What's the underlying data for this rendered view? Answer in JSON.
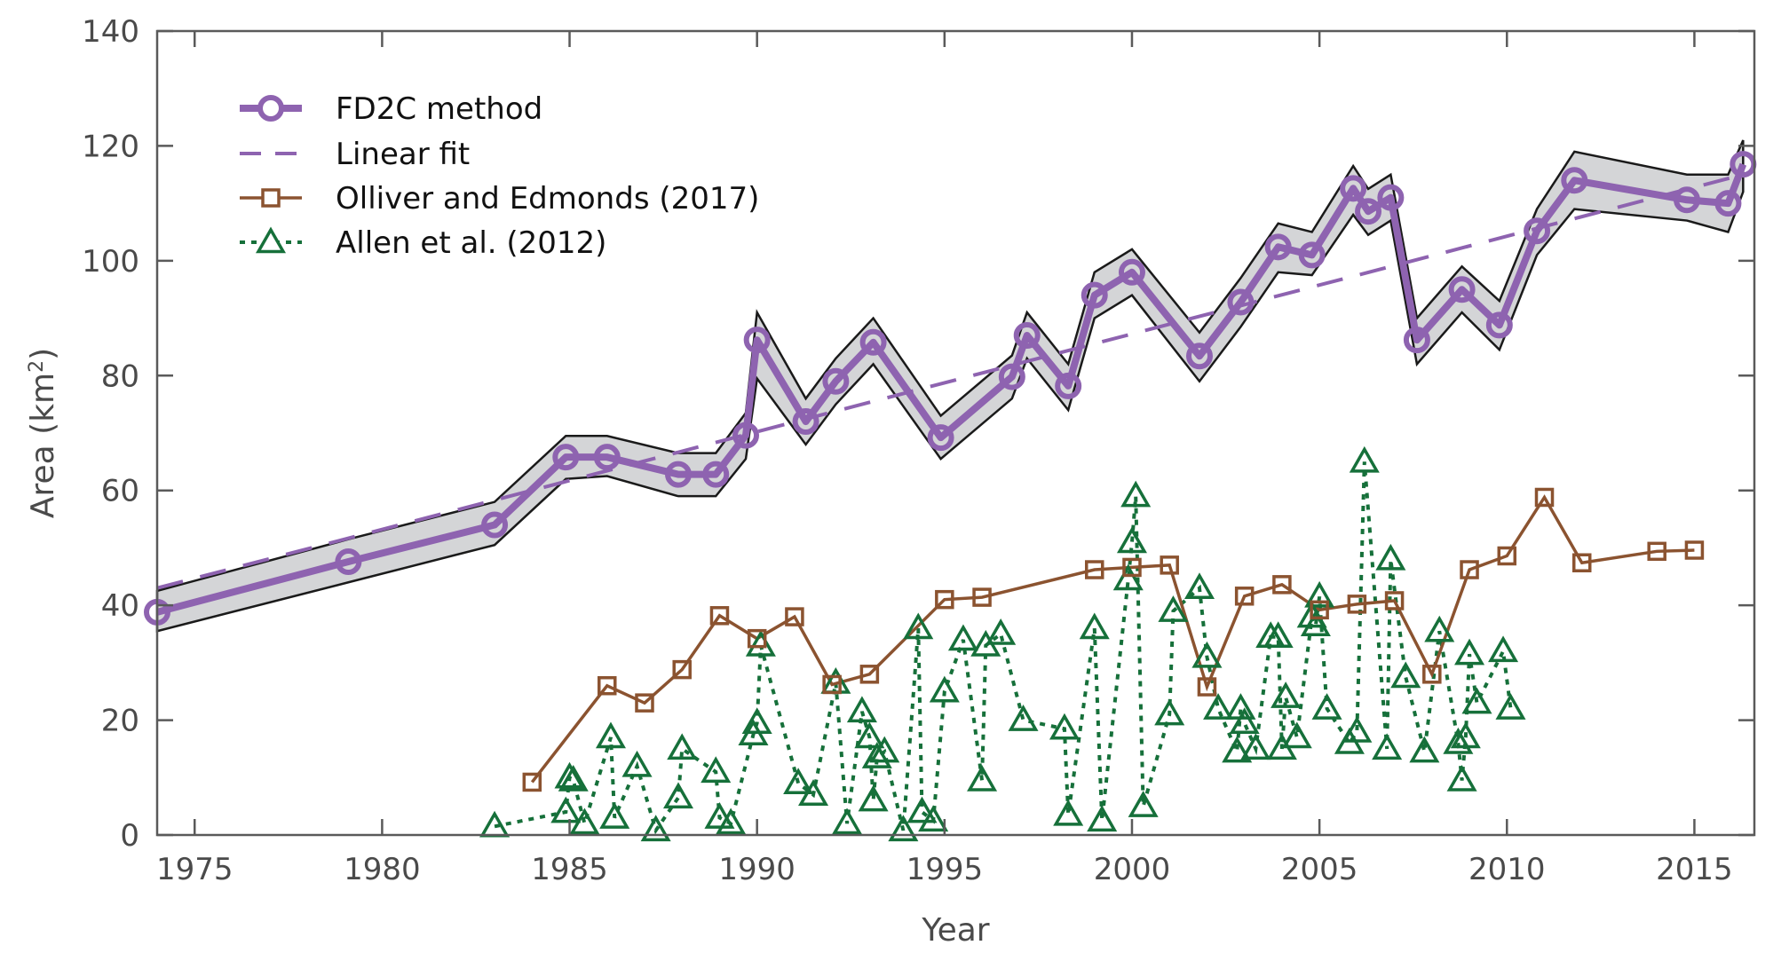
{
  "chart_data": {
    "type": "line",
    "title": "",
    "xlabel": "Year",
    "ylabel": "Area (km²)",
    "ylabel_base": "Area (km",
    "ylabel_sup": "2",
    "ylabel_end": ")",
    "xlim": [
      1974,
      2016.6
    ],
    "ylim": [
      0,
      140
    ],
    "xticks": [
      1975,
      1980,
      1985,
      1990,
      1995,
      2000,
      2005,
      2010,
      2015
    ],
    "yticks": [
      0,
      20,
      40,
      60,
      80,
      100,
      120,
      140
    ],
    "grid": false,
    "legend_position": "top-left",
    "colors": {
      "fd2c": "#8e63b0",
      "band_fill": "#d4d5d7",
      "band_edge": "#1a1a1a",
      "olliver": "#8b5330",
      "allen": "#16703a",
      "axis": "#5a5a5a"
    },
    "series": [
      {
        "name": "FD2C method",
        "style": "solid-circle",
        "x": [
          1974.0,
          1979.1,
          1983.0,
          1984.9,
          1986.0,
          1987.9,
          1988.9,
          1989.7,
          1990.0,
          1991.3,
          1992.1,
          1993.1,
          1994.9,
          1996.8,
          1997.2,
          1998.3,
          1999.0,
          2000.0,
          2001.8,
          2002.9,
          2003.9,
          2004.8,
          2005.9,
          2006.3,
          2006.9,
          2007.6,
          2008.8,
          2009.8,
          2010.8,
          2011.8,
          2014.8,
          2015.9,
          2016.3
        ],
        "values": [
          38.8,
          47.6,
          54.0,
          65.8,
          65.8,
          62.8,
          62.8,
          69.6,
          86.2,
          72.0,
          79.0,
          85.8,
          69.2,
          79.8,
          87.0,
          78.2,
          94.0,
          98.0,
          83.4,
          92.8,
          102.4,
          101.0,
          112.6,
          108.6,
          111.0,
          86.2,
          95.0,
          88.8,
          105.2,
          114.0,
          110.6,
          110.0,
          116.8
        ],
        "band_upper": [
          42.5,
          51.5,
          58.0,
          69.5,
          69.5,
          66.5,
          66.5,
          73.5,
          91.0,
          76.0,
          83.0,
          90.0,
          73.0,
          83.5,
          91.0,
          82.0,
          98.0,
          102.0,
          87.5,
          97.0,
          106.5,
          105.0,
          116.5,
          112.5,
          115.0,
          90.0,
          99.0,
          93.0,
          109.0,
          119.0,
          115.0,
          115.0,
          121.0
        ],
        "band_lower": [
          35.5,
          44.0,
          50.5,
          62.0,
          62.5,
          59.0,
          59.0,
          65.5,
          79.5,
          68.0,
          75.0,
          82.0,
          65.5,
          76.0,
          83.0,
          74.0,
          90.0,
          94.0,
          79.0,
          88.5,
          98.0,
          97.5,
          108.0,
          104.5,
          107.0,
          82.0,
          91.0,
          84.5,
          101.0,
          109.0,
          107.0,
          105.0,
          112.0
        ]
      },
      {
        "name": "Linear fit",
        "style": "dashed",
        "x": [
          1974.0,
          2016.3
        ],
        "values": [
          43.0,
          115.0
        ]
      },
      {
        "name": "Olliver and Edmonds (2017)",
        "style": "solid-square",
        "x": [
          1984,
          1986,
          1987,
          1988,
          1989,
          1990,
          1991,
          1992,
          1993,
          1995,
          1996,
          1999,
          2000,
          2001,
          2002,
          2003,
          2004,
          2005,
          2006,
          2007,
          2008,
          2009,
          2010,
          2011,
          2012,
          2014,
          2015
        ],
        "values": [
          9.2,
          26.0,
          23.0,
          28.8,
          38.2,
          34.2,
          38.0,
          26.2,
          28.0,
          41.0,
          41.4,
          46.2,
          46.6,
          47.0,
          25.8,
          41.6,
          43.6,
          39.2,
          40.2,
          40.8,
          28.0,
          46.2,
          48.6,
          58.8,
          47.4,
          49.4,
          49.6
        ]
      },
      {
        "name": "Allen et al. (2012)",
        "style": "dotted-triangle",
        "x": [
          1983.0,
          1984.9,
          1985.0,
          1985.1,
          1985.4,
          1986.1,
          1986.2,
          1986.8,
          1987.3,
          1987.9,
          1988.0,
          1988.9,
          1989.0,
          1989.3,
          1989.9,
          1990.0,
          1990.1,
          1991.1,
          1991.5,
          1992.1,
          1992.4,
          1992.8,
          1993.0,
          1993.1,
          1993.2,
          1993.4,
          1993.9,
          1994.3,
          1994.4,
          1994.7,
          1995.0,
          1995.5,
          1996.0,
          1996.1,
          1996.5,
          1997.1,
          1998.2,
          1998.3,
          1999.0,
          1999.2,
          1999.9,
          2000.0,
          2000.1,
          2000.3,
          2001.0,
          2001.1,
          2001.8,
          2002.0,
          2002.3,
          2002.8,
          2002.9,
          2003.0,
          2003.3,
          2003.7,
          2003.9,
          2004.0,
          2004.1,
          2004.4,
          2004.8,
          2004.9,
          2005.0,
          2005.2,
          2005.8,
          2006.0,
          2006.2,
          2006.8,
          2006.9,
          2007.3,
          2007.8,
          2008.2,
          2008.7,
          2008.8,
          2008.9,
          2009.0,
          2009.2,
          2009.9,
          2010.1
        ],
        "values": [
          1.5,
          4.0,
          10.0,
          9.5,
          2.0,
          17.0,
          3.0,
          12.0,
          0.8,
          6.5,
          15.0,
          11.0,
          3.0,
          2.0,
          17.5,
          19.5,
          33.0,
          9.0,
          7.0,
          26.5,
          2.0,
          21.5,
          17.0,
          6.0,
          13.5,
          14.5,
          0.8,
          36.0,
          4.0,
          2.5,
          25.0,
          34.0,
          9.5,
          33.0,
          35.0,
          20.0,
          18.5,
          3.5,
          36.0,
          2.5,
          44.5,
          51.0,
          59.0,
          5.0,
          21.0,
          39.0,
          43.0,
          31.0,
          22.0,
          14.5,
          22.0,
          19.5,
          15.0,
          34.5,
          34.5,
          15.0,
          24.0,
          17.0,
          38.0,
          36.5,
          41.5,
          22.0,
          16.0,
          18.0,
          65.0,
          15.0,
          48.0,
          27.5,
          14.5,
          35.5,
          16.0,
          9.5,
          17.0,
          31.5,
          23.0,
          32.0,
          22.0
        ]
      }
    ]
  },
  "legend": {
    "items": [
      "FD2C method",
      "Linear fit",
      "Olliver and Edmonds (2017)",
      "Allen et al. (2012)"
    ]
  }
}
